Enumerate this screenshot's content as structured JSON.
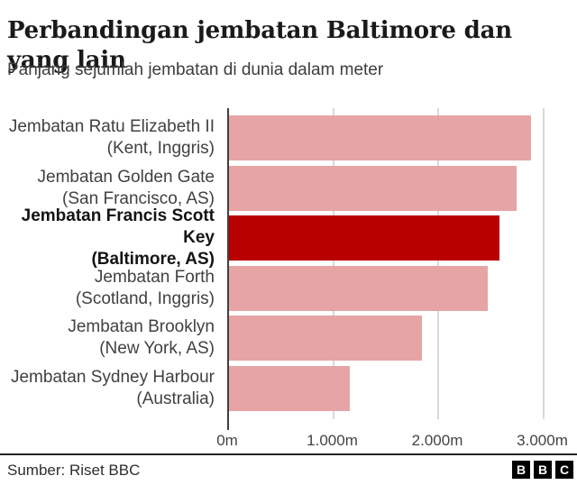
{
  "header": {
    "title": "Perbandingan jembatan Baltimore dan yang lain",
    "subtitle": "Panjang sejumlah jembatan di dunia dalam meter"
  },
  "chart_data": {
    "type": "bar",
    "orientation": "horizontal",
    "title": "Perbandingan jembatan Baltimore dan yang lain",
    "subtitle": "Panjang sejumlah jembatan di dunia dalam meter",
    "unit": "m",
    "xlim": [
      0,
      3000
    ],
    "grid": true,
    "legend": false,
    "categories": [
      "Jembatan Ratu Elizabeth II (Kent, Inggris)",
      "Jembatan Golden Gate (San Francisco, AS)",
      "Jembatan Francis Scott Key (Baltimore, AS)",
      "Jembatan Forth (Scotland, Inggris)",
      "Jembatan Brooklyn (New York, AS)",
      "Jembatan Sydney Harbour (Australia)"
    ],
    "values": [
      2872,
      2737,
      2574,
      2467,
      1834,
      1149
    ],
    "bars": [
      {
        "name": "Jembatan Ratu Elizabeth II",
        "location": "(Kent, Inggris)",
        "value": 2872,
        "highlight": false
      },
      {
        "name": "Jembatan Golden Gate",
        "location": "(San Francisco, AS)",
        "value": 2737,
        "highlight": false
      },
      {
        "name": "Jembatan Francis Scott Key",
        "location": "(Baltimore, AS)",
        "value": 2574,
        "highlight": true
      },
      {
        "name": "Jembatan Forth",
        "location": "(Scotland, Inggris)",
        "value": 2467,
        "highlight": false
      },
      {
        "name": "Jembatan Brooklyn",
        "location": "(New York, AS)",
        "value": 1834,
        "highlight": false
      },
      {
        "name": "Jembatan Sydney Harbour",
        "location": "(Australia)",
        "value": 1149,
        "highlight": false
      }
    ],
    "highlight_index": 2,
    "x_ticks": [
      {
        "label": "0m",
        "value": 0
      },
      {
        "label": "1.000m",
        "value": 1000
      },
      {
        "label": "2.000m",
        "value": 2000
      },
      {
        "label": "3.000m",
        "value": 3000
      }
    ],
    "colors": {
      "bar": "#e7a4a5",
      "highlight": "#b80000",
      "axis": "#404040",
      "gridline": "#d9d9d9"
    }
  },
  "footer": {
    "source": "Sumber: Riset BBC",
    "logo_blocks": [
      "B",
      "B",
      "C"
    ]
  }
}
